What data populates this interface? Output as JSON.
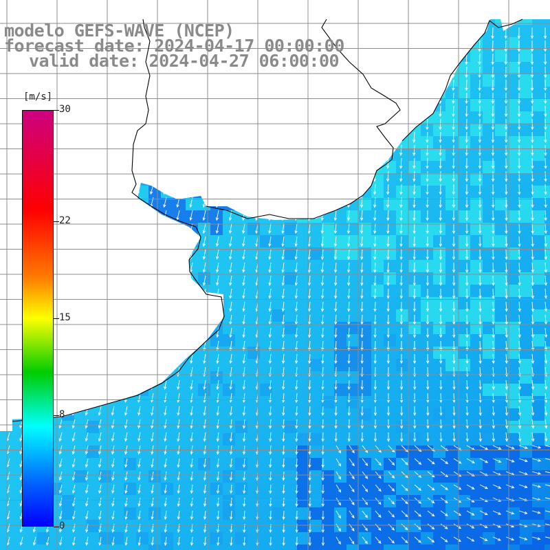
{
  "header": {
    "model_line": "modelo GEFS-WAVE (NCEP)",
    "forecast_line": "forecast date: 2024-04-17 00:00:00",
    "valid_line": "valid date: 2024-04-27 06:00:00"
  },
  "colorbar": {
    "unit": "[m/s]",
    "ticks": [
      "30",
      "22",
      "15",
      "8",
      "0"
    ],
    "tick_values": [
      30,
      22,
      15,
      8,
      0
    ],
    "range": [
      0,
      30
    ],
    "colors": [
      "#0000ff",
      "#0060ff",
      "#00ffff",
      "#00cc00",
      "#ffff00",
      "#ff7a00",
      "#ff0000",
      "#cc0080"
    ]
  },
  "map": {
    "land_color": "#ffffff",
    "sea_color": "#17b6f2",
    "grid_color": "#8c8c8c",
    "coastline_color": "#000000",
    "arrow_color": "#ffffff",
    "wind_direction": "from north-northeast toward south-southwest",
    "grid": "on"
  }
}
